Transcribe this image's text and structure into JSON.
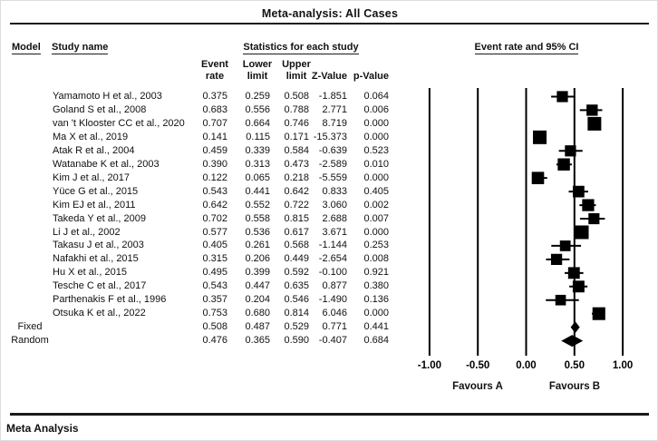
{
  "title": "Meta-analysis: All Cases",
  "footer_label": "Meta Analysis",
  "colors": {
    "ink": "#000000",
    "background": "#ffffff"
  },
  "table": {
    "model_header": "Model",
    "study_header": "Study name",
    "stats_group_header": "Statistics for each study",
    "plot_group_header": "Event rate and 95% CI",
    "stat_columns": [
      {
        "line1": "Event",
        "line2": "rate"
      },
      {
        "line1": "Lower",
        "line2": "limit"
      },
      {
        "line1": "Upper",
        "line2": "limit"
      },
      {
        "line1": "",
        "line2": "Z-Value"
      },
      {
        "line1": "",
        "line2": "p-Value"
      }
    ]
  },
  "chart_data": {
    "type": "forest",
    "effect_measure": "Event rate",
    "xlim": [
      -1.0,
      1.0
    ],
    "ticks": [
      -1.0,
      -0.5,
      0.0,
      0.5,
      1.0
    ],
    "tick_labels": [
      "-1.00",
      "-0.50",
      "0.00",
      "0.50",
      "1.00"
    ],
    "xlabel_left": "Favours A",
    "xlabel_right": "Favours B",
    "grid": true,
    "studies": [
      {
        "name": "Yamamoto H et al., 2003",
        "event_rate": 0.375,
        "lower": 0.259,
        "upper": 0.508,
        "z": -1.851,
        "p": 0.064
      },
      {
        "name": "Goland S et al., 2008",
        "event_rate": 0.683,
        "lower": 0.556,
        "upper": 0.788,
        "z": 2.771,
        "p": 0.006
      },
      {
        "name": "van 't Klooster CC et al., 2020",
        "event_rate": 0.707,
        "lower": 0.664,
        "upper": 0.746,
        "z": 8.719,
        "p": 0.0
      },
      {
        "name": "Ma X et al., 2019",
        "event_rate": 0.141,
        "lower": 0.115,
        "upper": 0.171,
        "z": -15.373,
        "p": 0.0
      },
      {
        "name": "Atak R et al., 2004",
        "event_rate": 0.459,
        "lower": 0.339,
        "upper": 0.584,
        "z": -0.639,
        "p": 0.523
      },
      {
        "name": "Watanabe K et al., 2003",
        "event_rate": 0.39,
        "lower": 0.313,
        "upper": 0.473,
        "z": -2.589,
        "p": 0.01
      },
      {
        "name": "Kim J et al., 2017",
        "event_rate": 0.122,
        "lower": 0.065,
        "upper": 0.218,
        "z": -5.559,
        "p": 0.0
      },
      {
        "name": "Yüce G et al., 2015",
        "event_rate": 0.543,
        "lower": 0.441,
        "upper": 0.642,
        "z": 0.833,
        "p": 0.405
      },
      {
        "name": "Kim EJ et al., 2011",
        "event_rate": 0.642,
        "lower": 0.552,
        "upper": 0.722,
        "z": 3.06,
        "p": 0.002
      },
      {
        "name": "Takeda Y et al., 2009",
        "event_rate": 0.702,
        "lower": 0.558,
        "upper": 0.815,
        "z": 2.688,
        "p": 0.007
      },
      {
        "name": "Li J et al., 2002",
        "event_rate": 0.577,
        "lower": 0.536,
        "upper": 0.617,
        "z": 3.671,
        "p": 0.0
      },
      {
        "name": "Takasu J et al., 2003",
        "event_rate": 0.405,
        "lower": 0.261,
        "upper": 0.568,
        "z": -1.144,
        "p": 0.253
      },
      {
        "name": "Nafakhi et al., 2015",
        "event_rate": 0.315,
        "lower": 0.206,
        "upper": 0.449,
        "z": -2.654,
        "p": 0.008
      },
      {
        "name": "Hu X et al., 2015",
        "event_rate": 0.495,
        "lower": 0.399,
        "upper": 0.592,
        "z": -0.1,
        "p": 0.921
      },
      {
        "name": "Tesche C et al., 2017",
        "event_rate": 0.543,
        "lower": 0.447,
        "upper": 0.635,
        "z": 0.877,
        "p": 0.38
      },
      {
        "name": "Parthenakis F et al., 1996",
        "event_rate": 0.357,
        "lower": 0.204,
        "upper": 0.546,
        "z": -1.49,
        "p": 0.136
      },
      {
        "name": "Otsuka K et al., 2022",
        "event_rate": 0.753,
        "lower": 0.68,
        "upper": 0.814,
        "z": 6.046,
        "p": 0.0
      }
    ],
    "summaries": [
      {
        "model": "Fixed",
        "event_rate": 0.508,
        "lower": 0.487,
        "upper": 0.529,
        "z": 0.771,
        "p": 0.441
      },
      {
        "model": "Random",
        "event_rate": 0.476,
        "lower": 0.365,
        "upper": 0.59,
        "z": -0.407,
        "p": 0.684
      }
    ]
  }
}
